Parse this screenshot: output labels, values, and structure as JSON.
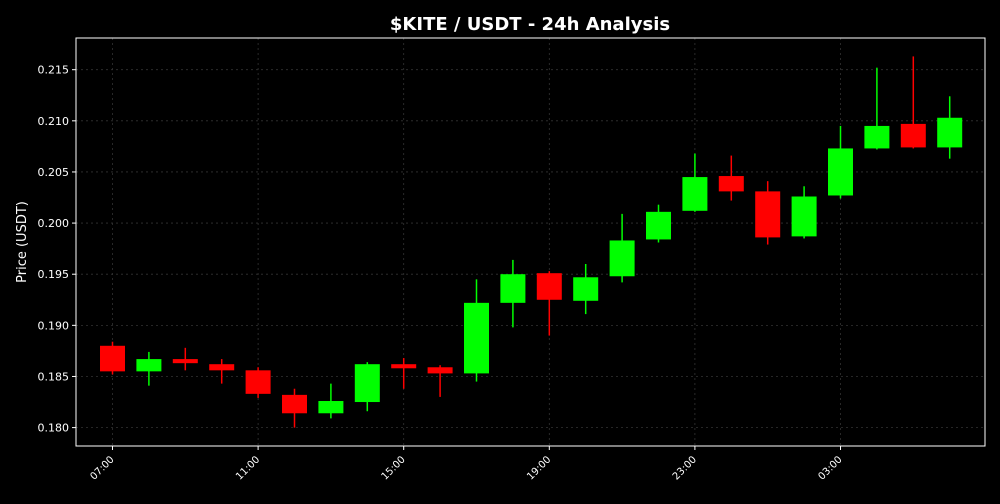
{
  "chart_data": {
    "type": "candlestick",
    "title": "$KITE / USDT - 24h Analysis",
    "ylabel": "Price (USDT)",
    "xlabel": "",
    "ylim": [
      0.1782,
      0.2181
    ],
    "grid": true,
    "colors": {
      "background": "#000000",
      "frame": "#ffffff",
      "text": "#ffffff",
      "up": "#00ff00",
      "down": "#ff0000",
      "grid": "#333333"
    },
    "y_ticks": [
      0.18,
      0.185,
      0.19,
      0.195,
      0.2,
      0.205,
      0.21,
      0.215
    ],
    "y_tick_labels": [
      "0.180",
      "0.185",
      "0.190",
      "0.195",
      "0.200",
      "0.205",
      "0.210",
      "0.215"
    ],
    "x_ticks": [
      {
        "index": 0,
        "label": "07:00"
      },
      {
        "index": 4,
        "label": "11:00"
      },
      {
        "index": 8,
        "label": "15:00"
      },
      {
        "index": 12,
        "label": "19:00"
      },
      {
        "index": 16,
        "label": "23:00"
      },
      {
        "index": 20,
        "label": "03:00"
      }
    ],
    "candles": [
      {
        "index": 0,
        "open": 0.188,
        "high": 0.1884,
        "low": 0.1852,
        "close": 0.1855
      },
      {
        "index": 1,
        "open": 0.1855,
        "high": 0.1874,
        "low": 0.1841,
        "close": 0.1867
      },
      {
        "index": 2,
        "open": 0.1867,
        "high": 0.1878,
        "low": 0.1856,
        "close": 0.1863
      },
      {
        "index": 3,
        "open": 0.1862,
        "high": 0.1867,
        "low": 0.1843,
        "close": 0.1856
      },
      {
        "index": 4,
        "open": 0.1856,
        "high": 0.1859,
        "low": 0.1829,
        "close": 0.1833
      },
      {
        "index": 5,
        "open": 0.1832,
        "high": 0.1838,
        "low": 0.18,
        "close": 0.1814
      },
      {
        "index": 6,
        "open": 0.1814,
        "high": 0.1843,
        "low": 0.1809,
        "close": 0.1826
      },
      {
        "index": 7,
        "open": 0.1825,
        "high": 0.1864,
        "low": 0.1816,
        "close": 0.1862
      },
      {
        "index": 8,
        "open": 0.1862,
        "high": 0.1868,
        "low": 0.1838,
        "close": 0.1858
      },
      {
        "index": 9,
        "open": 0.1859,
        "high": 0.1861,
        "low": 0.183,
        "close": 0.1853
      },
      {
        "index": 10,
        "open": 0.1853,
        "high": 0.1945,
        "low": 0.1845,
        "close": 0.1922
      },
      {
        "index": 11,
        "open": 0.1922,
        "high": 0.1964,
        "low": 0.1898,
        "close": 0.195
      },
      {
        "index": 12,
        "open": 0.1951,
        "high": 0.1953,
        "low": 0.189,
        "close": 0.1925
      },
      {
        "index": 13,
        "open": 0.1924,
        "high": 0.196,
        "low": 0.1911,
        "close": 0.1947
      },
      {
        "index": 14,
        "open": 0.1948,
        "high": 0.2009,
        "low": 0.1942,
        "close": 0.1983
      },
      {
        "index": 15,
        "open": 0.1984,
        "high": 0.2018,
        "low": 0.1981,
        "close": 0.2011
      },
      {
        "index": 16,
        "open": 0.2012,
        "high": 0.2068,
        "low": 0.2011,
        "close": 0.2045
      },
      {
        "index": 17,
        "open": 0.2046,
        "high": 0.2066,
        "low": 0.2022,
        "close": 0.2031
      },
      {
        "index": 18,
        "open": 0.2031,
        "high": 0.2041,
        "low": 0.1979,
        "close": 0.1986
      },
      {
        "index": 19,
        "open": 0.1987,
        "high": 0.2036,
        "low": 0.1985,
        "close": 0.2026
      },
      {
        "index": 20,
        "open": 0.2027,
        "high": 0.2095,
        "low": 0.2024,
        "close": 0.2073
      },
      {
        "index": 21,
        "open": 0.2073,
        "high": 0.2152,
        "low": 0.2072,
        "close": 0.2095
      },
      {
        "index": 22,
        "open": 0.2097,
        "high": 0.2163,
        "low": 0.2073,
        "close": 0.2074
      },
      {
        "index": 23,
        "open": 0.2074,
        "high": 0.2124,
        "low": 0.2063,
        "close": 0.2103
      }
    ]
  }
}
